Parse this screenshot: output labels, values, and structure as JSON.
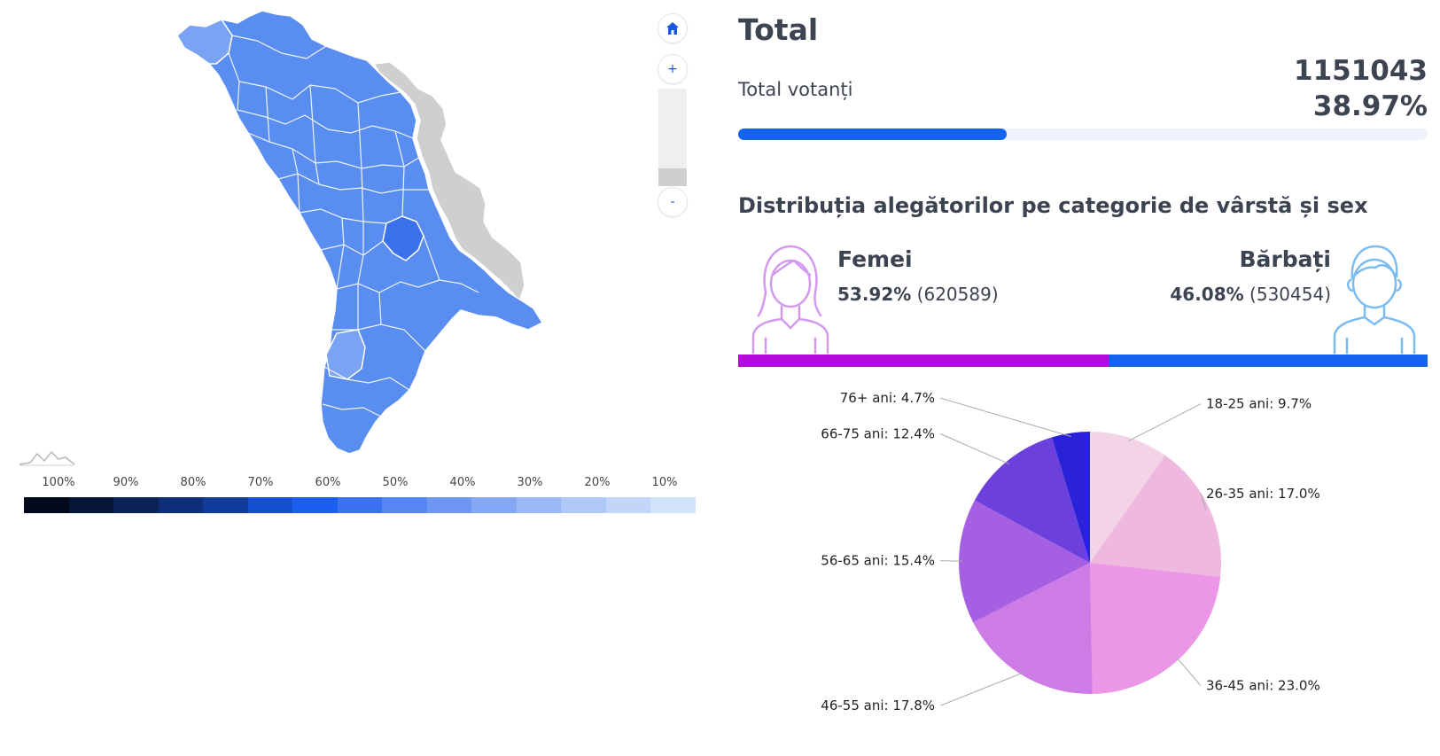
{
  "colors": {
    "accent": "#1464f0",
    "female": "#b40adc",
    "male": "#1464f0",
    "map_fill": "#5a8df0",
    "map_fill_dark": "#3a72ee",
    "map_fill_light": "#7aa3f4",
    "map_disputed": "#cfcfcf",
    "track": "#eef3fb"
  },
  "map": {
    "icons": {
      "home": "home-icon"
    },
    "zoom_in_label": "+",
    "zoom_out_label": "-",
    "legend": {
      "labels": [
        "100%",
        "90%",
        "80%",
        "70%",
        "60%",
        "50%",
        "40%",
        "30%",
        "20%",
        "10%"
      ],
      "colors": [
        "#030a1c",
        "#06163a",
        "#0a2258",
        "#0d2e78",
        "#113c9c",
        "#1550d0",
        "#1c5ff0",
        "#3a72f1",
        "#5586f2",
        "#6e97f3",
        "#85a8f5",
        "#9bb8f6",
        "#b0c8f8",
        "#c3d6fa",
        "#d3e2fb"
      ]
    }
  },
  "summary": {
    "title": "Total",
    "voters_label": "Total votanți",
    "voters_count": "1151043",
    "voters_percent": "38.97%",
    "turnout_fraction": 0.3897
  },
  "distribution": {
    "title": "Distribuția alegătorilor pe categorie de vârstă și sex",
    "female": {
      "label": "Femei",
      "percent": "53.92%",
      "count": "(620589)",
      "fraction": 0.5392,
      "icon": "female-avatar-icon"
    },
    "male": {
      "label": "Bărbați",
      "percent": "46.08%",
      "count": "(530454)",
      "fraction": 0.4608,
      "icon": "male-avatar-icon"
    }
  },
  "chart_data": {
    "type": "pie",
    "start_angle_deg": 0,
    "direction": "clockwise",
    "slices": [
      {
        "label": "18-25 ani: 9.7%",
        "category": "18-25 ani",
        "value": 9.7,
        "color": "#f3d4e6"
      },
      {
        "label": "26-35 ani: 17.0%",
        "category": "26-35 ani",
        "value": 17.0,
        "color": "#efb8de"
      },
      {
        "label": "36-45 ani: 23.0%",
        "category": "36-45 ani",
        "value": 23.0,
        "color": "#eb96e6"
      },
      {
        "label": "46-55 ani: 17.8%",
        "category": "46-55 ani",
        "value": 17.8,
        "color": "#cd7ce6"
      },
      {
        "label": "56-65 ani: 15.4%",
        "category": "56-65 ani",
        "value": 15.4,
        "color": "#a55fe3"
      },
      {
        "label": "66-75 ani: 12.4%",
        "category": "66-75 ani",
        "value": 12.4,
        "color": "#6b40dc"
      },
      {
        "label": "76+ ani: 4.7%",
        "category": "76+ ani",
        "value": 4.7,
        "color": "#2a22d6"
      }
    ]
  }
}
